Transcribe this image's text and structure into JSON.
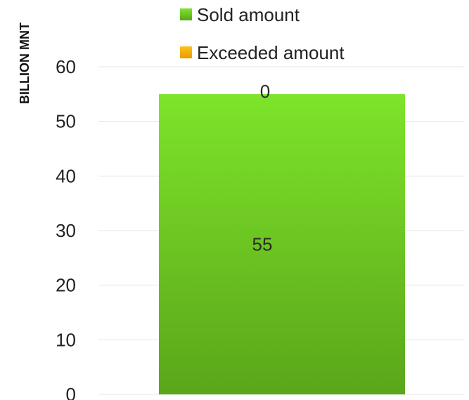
{
  "chart_data": {
    "type": "bar",
    "stacked": true,
    "categories": [
      ""
    ],
    "series": [
      {
        "name": "Sold amount",
        "values": [
          55
        ],
        "color": "#6cc41f",
        "labels": [
          "55"
        ]
      },
      {
        "name": "Exceeded amount",
        "values": [
          0
        ],
        "color": "#f5a800",
        "labels": [
          "0"
        ]
      }
    ],
    "ylabel": "BILLION MNT",
    "ylim": [
      0,
      60
    ],
    "yticks": [
      0,
      10,
      20,
      30,
      40,
      50,
      60
    ],
    "grid": true,
    "legend": "top"
  }
}
